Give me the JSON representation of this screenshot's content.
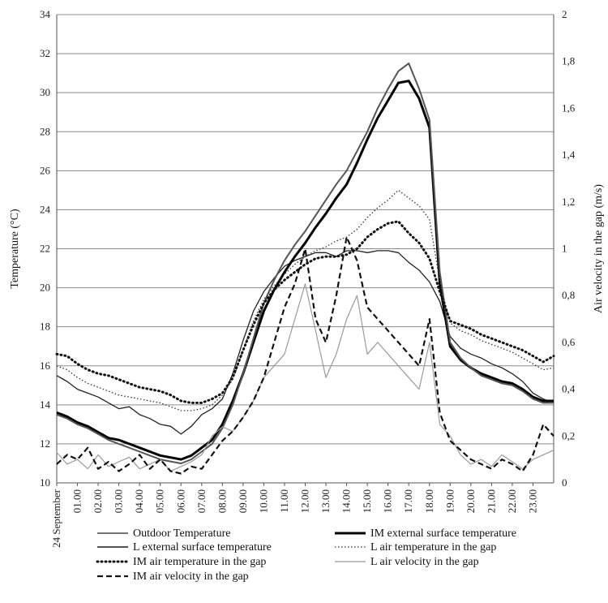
{
  "chart_data": {
    "type": "line",
    "xlabel": "",
    "ylabel": "Temperature (°C)",
    "y2label": "Air velocity in the gap  (m/s)",
    "ylim": [
      10,
      34
    ],
    "y2lim": [
      0,
      2
    ],
    "yticks": [
      "10",
      "12",
      "14",
      "16",
      "18",
      "20",
      "22",
      "24",
      "26",
      "28",
      "30",
      "32",
      "34"
    ],
    "y2ticks": [
      "0",
      "0,2",
      "0,4",
      "0,6",
      "0,8",
      "1",
      "1,2",
      "1,4",
      "1,6",
      "1,8",
      "2"
    ],
    "xticks": [
      "24 September",
      "01.00",
      "02.00",
      "03.00",
      "04.00",
      "05.00",
      "06.00",
      "07.00",
      "08.00",
      "09.00",
      "10.00",
      "11.00",
      "12.00",
      "13.00",
      "14.00",
      "15.00",
      "16.00",
      "17.00",
      "18.00",
      "19.00",
      "20.00",
      "21.00",
      "22.00",
      "23.00"
    ],
    "grid": "horizontal",
    "legend_position": "bottom",
    "hours": [
      0,
      0.5,
      1,
      1.5,
      2,
      2.5,
      3,
      3.5,
      4,
      4.5,
      5,
      5.5,
      6,
      6.5,
      7,
      7.5,
      8,
      8.5,
      9,
      9.5,
      10,
      10.5,
      11,
      11.5,
      12,
      12.5,
      13,
      13.5,
      14,
      14.5,
      15,
      15.5,
      16,
      16.5,
      17,
      17.5,
      18,
      18.5,
      19,
      19.5,
      20,
      20.5,
      21,
      21.5,
      22,
      22.5,
      23,
      23.5,
      24
    ],
    "series": [
      {
        "name": "Outdoor Temperature",
        "axis": "left",
        "style": "thin-solid",
        "color": "#222222",
        "values": [
          15.5,
          15.2,
          14.8,
          14.6,
          14.4,
          14.1,
          13.8,
          13.9,
          13.5,
          13.3,
          13.0,
          12.9,
          12.5,
          12.9,
          13.5,
          13.8,
          14.3,
          15.6,
          17.3,
          18.8,
          19.8,
          20.5,
          21.1,
          21.4,
          21.6,
          21.8,
          21.8,
          21.6,
          21.9,
          21.9,
          21.8,
          21.9,
          21.9,
          21.8,
          21.3,
          20.9,
          20.3,
          19.3,
          17.5,
          16.9,
          16.6,
          16.4,
          16.1,
          15.9,
          15.6,
          15.2,
          14.6,
          14.3,
          14.1
        ]
      },
      {
        "name": "IM external surface temperature",
        "axis": "left",
        "style": "thick-solid",
        "color": "#000000",
        "values": [
          13.6,
          13.4,
          13.1,
          12.9,
          12.6,
          12.3,
          12.2,
          12.0,
          11.8,
          11.6,
          11.4,
          11.3,
          11.2,
          11.4,
          11.8,
          12.2,
          13.0,
          14.2,
          15.6,
          17.2,
          18.8,
          19.9,
          20.8,
          21.6,
          22.3,
          23.1,
          23.8,
          24.6,
          25.3,
          26.4,
          27.6,
          28.7,
          29.6,
          30.5,
          30.6,
          29.7,
          28.2,
          20.2,
          17.0,
          16.3,
          15.9,
          15.6,
          15.4,
          15.2,
          15.1,
          14.8,
          14.4,
          14.2,
          14.2
        ]
      },
      {
        "name": "L external surface temperature",
        "axis": "left",
        "style": "gray-solid",
        "color": "#555555",
        "values": [
          13.5,
          13.3,
          13.0,
          12.8,
          12.5,
          12.2,
          12.0,
          11.8,
          11.6,
          11.4,
          11.2,
          11.1,
          11.0,
          11.2,
          11.6,
          12.0,
          12.8,
          14.0,
          15.6,
          17.4,
          19.2,
          20.4,
          21.4,
          22.2,
          22.9,
          23.7,
          24.5,
          25.3,
          26.0,
          27.0,
          28.0,
          29.2,
          30.2,
          31.1,
          31.5,
          30.2,
          28.6,
          20.8,
          17.2,
          16.4,
          15.9,
          15.5,
          15.3,
          15.1,
          15.0,
          14.7,
          14.3,
          14.1,
          14.1
        ]
      },
      {
        "name": "L air temperature in the gap",
        "axis": "left",
        "style": "fine-dotted",
        "color": "#333333",
        "values": [
          16.0,
          15.8,
          15.4,
          15.1,
          14.9,
          14.7,
          14.5,
          14.4,
          14.3,
          14.2,
          14.1,
          13.9,
          13.7,
          13.7,
          13.8,
          14.0,
          14.5,
          15.3,
          16.8,
          18.3,
          19.4,
          20.1,
          20.7,
          21.2,
          21.6,
          21.9,
          22.1,
          22.4,
          22.6,
          23.0,
          23.6,
          24.1,
          24.5,
          25.0,
          24.6,
          24.2,
          23.5,
          20.3,
          18.2,
          17.8,
          17.6,
          17.3,
          17.1,
          16.9,
          16.7,
          16.4,
          16.1,
          15.8,
          15.9
        ]
      },
      {
        "name": "IM air temperature in the gap",
        "axis": "left",
        "style": "heavy-dotted",
        "color": "#111111",
        "values": [
          16.6,
          16.5,
          16.1,
          15.8,
          15.6,
          15.5,
          15.3,
          15.1,
          14.9,
          14.8,
          14.7,
          14.5,
          14.2,
          14.1,
          14.1,
          14.3,
          14.6,
          15.4,
          16.8,
          18.1,
          19.2,
          19.9,
          20.4,
          20.8,
          21.2,
          21.5,
          21.6,
          21.6,
          21.7,
          22.0,
          22.6,
          23.0,
          23.3,
          23.4,
          22.8,
          22.3,
          21.5,
          19.8,
          18.3,
          18.1,
          17.9,
          17.6,
          17.4,
          17.2,
          17.0,
          16.8,
          16.5,
          16.2,
          16.5
        ]
      },
      {
        "name": "L air velocity in the gap",
        "axis": "right",
        "style": "gray-solid-thin",
        "color": "#9a9a9a",
        "values": [
          0.13,
          0.08,
          0.1,
          0.06,
          0.12,
          0.07,
          0.09,
          0.11,
          0.06,
          0.08,
          0.1,
          0.05,
          0.07,
          0.09,
          0.12,
          0.2,
          0.24,
          0.22,
          0.28,
          0.35,
          0.45,
          0.5,
          0.55,
          0.7,
          0.85,
          0.65,
          0.45,
          0.55,
          0.7,
          0.8,
          0.55,
          0.6,
          0.55,
          0.5,
          0.45,
          0.4,
          0.6,
          0.25,
          0.2,
          0.12,
          0.08,
          0.1,
          0.07,
          0.12,
          0.09,
          0.06,
          0.1,
          0.12,
          0.14
        ]
      },
      {
        "name": "IM air velocity in the gap",
        "axis": "right",
        "style": "dashed",
        "color": "#111111",
        "values": [
          0.08,
          0.12,
          0.1,
          0.15,
          0.06,
          0.09,
          0.05,
          0.08,
          0.12,
          0.06,
          0.1,
          0.05,
          0.04,
          0.07,
          0.06,
          0.12,
          0.18,
          0.22,
          0.28,
          0.35,
          0.45,
          0.6,
          0.75,
          0.85,
          1.0,
          0.7,
          0.6,
          0.8,
          1.05,
          0.95,
          0.75,
          0.7,
          0.65,
          0.6,
          0.55,
          0.5,
          0.7,
          0.3,
          0.18,
          0.14,
          0.1,
          0.08,
          0.06,
          0.1,
          0.08,
          0.05,
          0.12,
          0.25,
          0.2
        ]
      }
    ]
  }
}
